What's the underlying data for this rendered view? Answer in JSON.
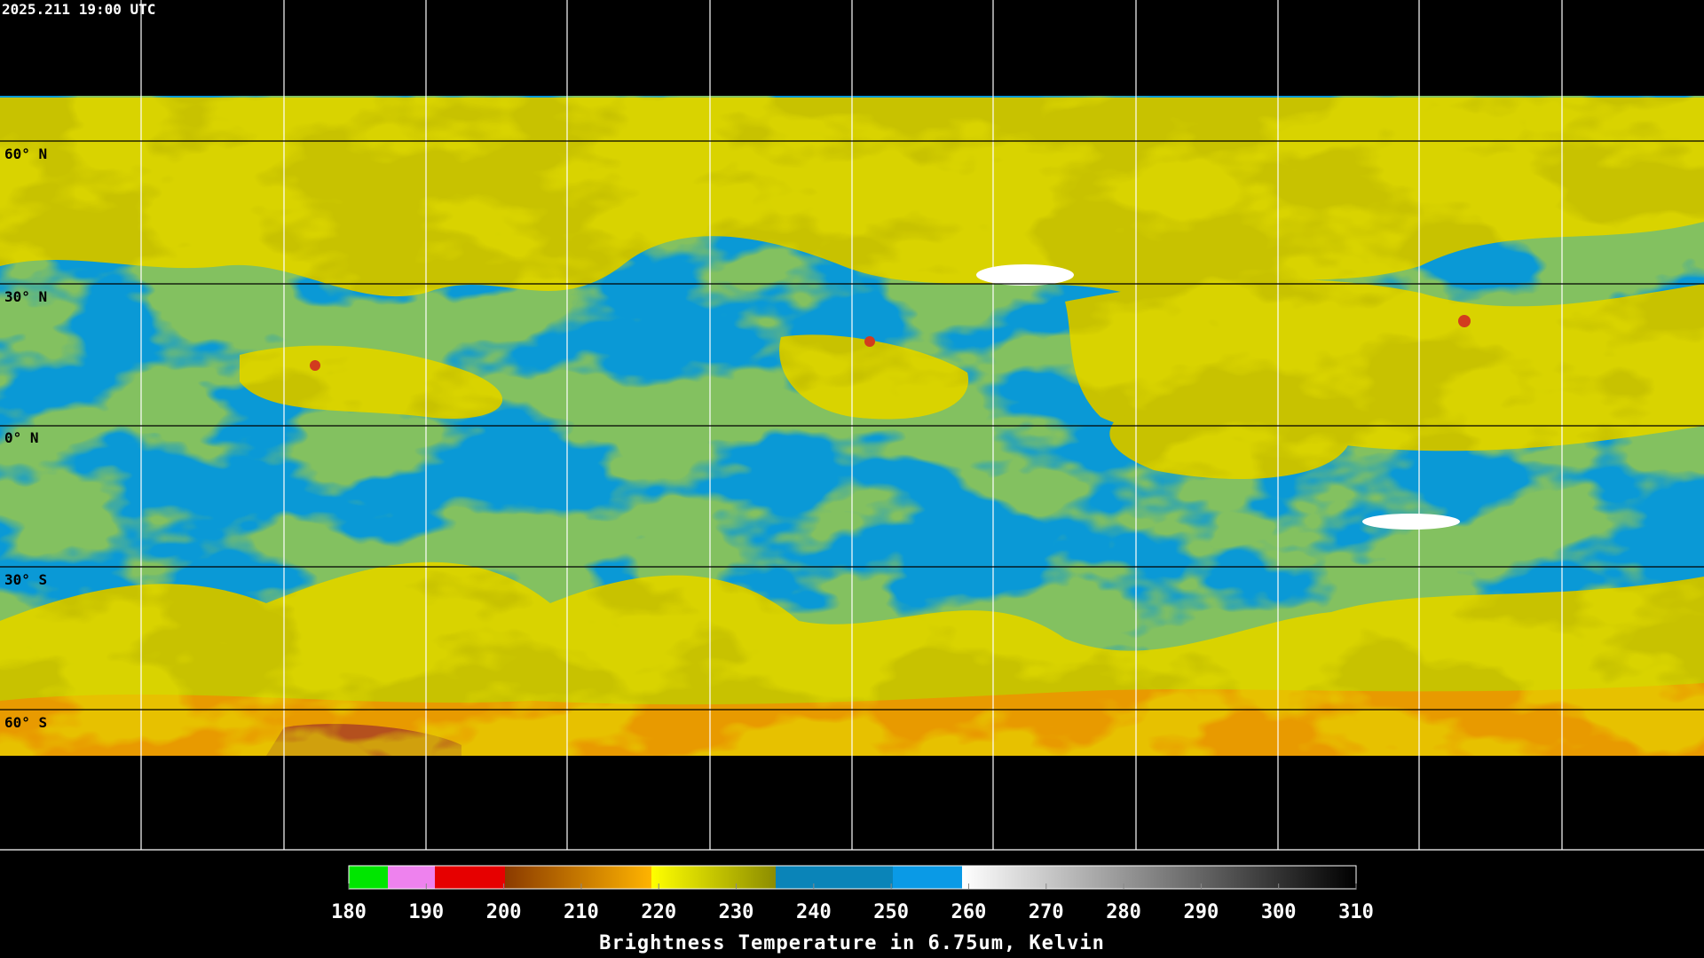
{
  "header": {
    "timestamp": "2025.211 19:00 UTC"
  },
  "latitude_labels": [
    "60° N",
    "30° N",
    "0° N",
    "30° S",
    "60° S"
  ],
  "colorbar": {
    "ticks": [
      180,
      190,
      200,
      210,
      220,
      230,
      240,
      250,
      260,
      270,
      280,
      290,
      300,
      310
    ],
    "caption": "Brightness Temperature in 6.75um, Kelvin"
  }
}
